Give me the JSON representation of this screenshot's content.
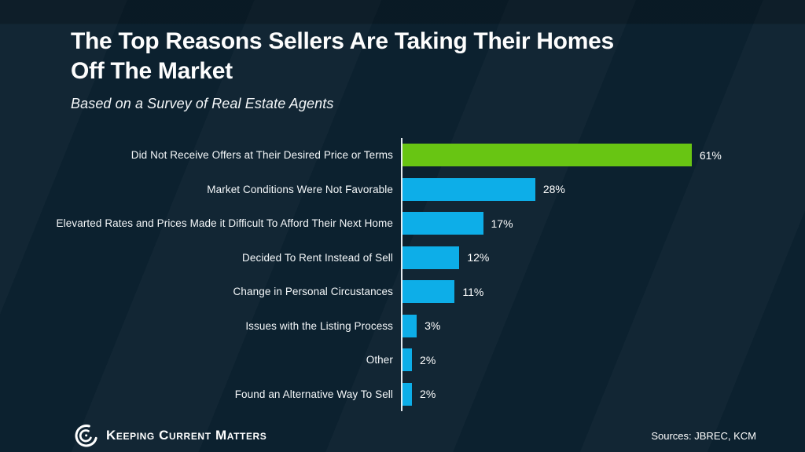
{
  "header": {
    "title_line1": "The Top Reasons Sellers Are Taking Their Homes",
    "title_line2": "Off The Market",
    "subtitle": "Based on a Survey of Real Estate Agents"
  },
  "chart_data": {
    "type": "bar",
    "orientation": "horizontal",
    "title": "The Top Reasons Sellers Are Taking Their Homes Off The Market",
    "subtitle": "Based on a Survey of Real Estate Agents",
    "categories": [
      "Did Not Receive Offers at Their Desired Price or Terms",
      "Market Conditions Were Not Favorable",
      "Elevarted Rates and Prices Made it Difficult To Afford Their Next Home",
      "Decided To Rent Instead of Sell",
      "Change in Personal Circustances",
      "Issues with the Listing Process",
      "Other",
      "Found an Alternative Way To Sell"
    ],
    "values": [
      61,
      28,
      17,
      12,
      11,
      3,
      2,
      2
    ],
    "value_labels": [
      "61%",
      "28%",
      "17%",
      "12%",
      "11%",
      "3%",
      "2%",
      "2%"
    ],
    "colors": [
      "#68C513",
      "#0DAEE8",
      "#0DAEE8",
      "#0DAEE8",
      "#0DAEE8",
      "#0DAEE8",
      "#0DAEE8",
      "#0DAEE8"
    ],
    "xlim": [
      0,
      65
    ],
    "grid": false,
    "legend": null,
    "axis_line_color": "#E7EDF1",
    "background_color": "#0C212F"
  },
  "footer": {
    "logo_text": "Keeping Current Matters",
    "sources": "Sources: JBREC, KCM",
    "bg_left_color": "#0A82C8",
    "bg_right_color": "#093F68"
  },
  "colors": {
    "background": "#0C212F",
    "bar_highlight": "#68C513",
    "bar_default": "#0DAEE8",
    "text": "#FFFFFF"
  }
}
